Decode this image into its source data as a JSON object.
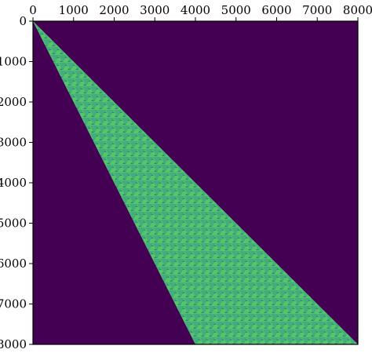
{
  "chart_data": {
    "type": "heatmap",
    "title": "",
    "xlabel": "",
    "ylabel": "",
    "xlim": [
      0,
      8000
    ],
    "ylim": [
      8000,
      0
    ],
    "x_axis_position": "top",
    "y_axis_inverted": true,
    "x_ticks": [
      "0",
      "1000",
      "2000",
      "3000",
      "4000",
      "5000",
      "6000",
      "7000",
      "8000"
    ],
    "y_ticks": [
      "0",
      "1000",
      "2000",
      "3000",
      "4000",
      "5000",
      "6000",
      "7000",
      "8000"
    ],
    "x_tick_values": [
      0,
      1000,
      2000,
      3000,
      4000,
      5000,
      6000,
      7000,
      8000
    ],
    "y_tick_values": [
      0,
      1000,
      2000,
      3000,
      4000,
      5000,
      6000,
      7000,
      8000
    ],
    "colormap": "viridis",
    "background_color": "#440154",
    "region": {
      "shape": "triangle",
      "vertices": [
        [
          0,
          0
        ],
        [
          8000,
          8000
        ],
        [
          4000,
          8000
        ]
      ],
      "pattern_colors": [
        "#3ba982",
        "#50c46a",
        "#6ccd5a",
        "#2a788e",
        "#31688e",
        "#8fd744"
      ]
    },
    "grid": false,
    "legend": "none"
  }
}
